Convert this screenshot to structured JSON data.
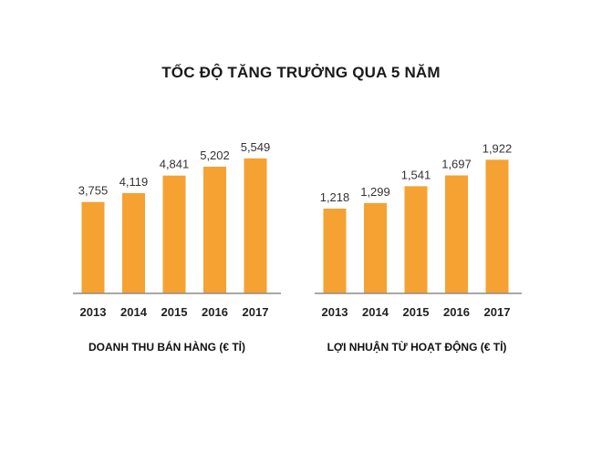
{
  "title": "TỐC ĐỘ TĂNG TRƯỞNG QUA 5 NĂM",
  "colors": {
    "bar": "#F5A232",
    "axis": "#8c8c8c"
  },
  "chart_data": [
    {
      "type": "bar",
      "title": "",
      "xlabel": "DOANH THU BÁN HÀNG (€ TỈ)",
      "ylabel": "",
      "categories": [
        "2013",
        "2014",
        "2015",
        "2016",
        "2017"
      ],
      "values": [
        3755,
        4119,
        4841,
        5202,
        5549
      ],
      "value_labels": [
        "3,755",
        "4,119",
        "4,841",
        "5,202",
        "5,549"
      ],
      "ylim": [
        0,
        7000
      ]
    },
    {
      "type": "bar",
      "title": "",
      "xlabel": "LỢI NHUẬN TỪ HOẠT ĐỘNG (€ TỈ)",
      "ylabel": "",
      "categories": [
        "2013",
        "2014",
        "2015",
        "2016",
        "2017"
      ],
      "values": [
        1218,
        1299,
        1541,
        1697,
        1922
      ],
      "value_labels": [
        "1,218",
        "1,299",
        "1,541",
        "1,697",
        "1,922"
      ],
      "ylim": [
        0,
        2450
      ]
    }
  ]
}
